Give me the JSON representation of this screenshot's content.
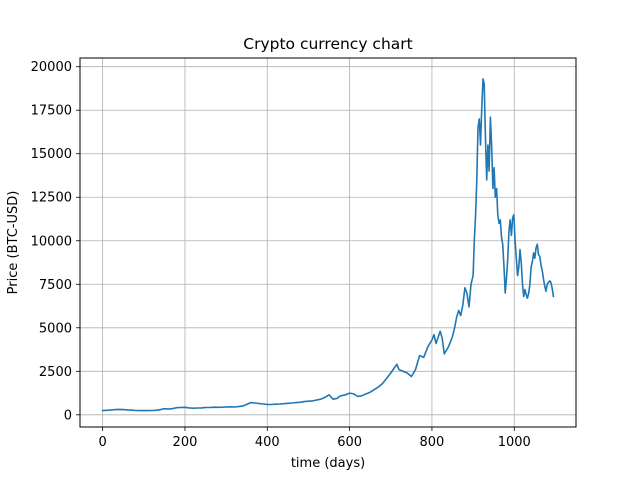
{
  "chart_data": {
    "type": "line",
    "title": "Crypto currency chart",
    "xlabel": "time (days)",
    "ylabel": "Price (BTC-USD)",
    "xlim": [
      -55,
      1150
    ],
    "ylim": [
      -700,
      20500
    ],
    "xticks": [
      0,
      200,
      400,
      600,
      800,
      1000
    ],
    "yticks": [
      0,
      2500,
      5000,
      7500,
      10000,
      12500,
      15000,
      17500,
      20000
    ],
    "grid": true,
    "line_color": "#1f77b4",
    "series": [
      {
        "x": [
          0,
          10,
          20,
          30,
          40,
          50,
          60,
          70,
          80,
          90,
          100,
          110,
          120,
          130,
          140,
          150,
          160,
          170,
          180,
          190,
          200,
          210,
          220,
          230,
          240,
          250,
          260,
          270,
          280,
          290,
          300,
          310,
          320,
          330,
          340,
          350,
          360,
          370,
          380,
          390,
          400,
          410,
          420,
          430,
          440,
          450,
          460,
          470,
          480,
          490,
          500,
          510,
          520,
          530,
          540,
          550,
          560,
          570,
          575,
          580,
          590,
          600,
          610,
          620,
          630,
          640,
          650,
          660,
          670,
          680,
          690,
          700,
          710,
          715,
          720,
          730,
          740,
          750,
          760,
          765,
          770,
          780,
          790,
          800,
          805,
          810,
          820,
          825,
          830,
          840,
          845,
          850,
          855,
          860,
          865,
          870,
          875,
          880,
          885,
          890,
          895,
          900,
          903,
          906,
          909,
          912,
          915,
          918,
          921,
          924,
          927,
          930,
          933,
          936,
          939,
          942,
          945,
          948,
          951,
          954,
          957,
          960,
          963,
          966,
          969,
          972,
          975,
          978,
          981,
          984,
          987,
          990,
          993,
          996,
          999,
          1002,
          1005,
          1008,
          1011,
          1014,
          1017,
          1020,
          1023,
          1026,
          1029,
          1032,
          1035,
          1038,
          1041,
          1044,
          1047,
          1050,
          1053,
          1056,
          1059,
          1062,
          1065,
          1068,
          1071,
          1074,
          1077,
          1080,
          1083,
          1086,
          1089,
          1092,
          1095
        ],
        "y": [
          250,
          260,
          270,
          300,
          310,
          300,
          280,
          270,
          250,
          240,
          240,
          245,
          250,
          260,
          300,
          350,
          330,
          360,
          410,
          420,
          430,
          400,
          380,
          390,
          400,
          420,
          420,
          440,
          430,
          440,
          450,
          460,
          450,
          470,
          500,
          600,
          700,
          680,
          650,
          620,
          600,
          590,
          610,
          620,
          640,
          660,
          680,
          700,
          720,
          760,
          780,
          800,
          850,
          900,
          1000,
          1150,
          900,
          950,
          1050,
          1100,
          1150,
          1250,
          1200,
          1050,
          1100,
          1200,
          1300,
          1450,
          1600,
          1800,
          2100,
          2400,
          2750,
          2900,
          2600,
          2500,
          2400,
          2200,
          2600,
          3000,
          3400,
          3300,
          3900,
          4300,
          4600,
          4100,
          4800,
          4400,
          3500,
          3900,
          4200,
          4500,
          5000,
          5600,
          6000,
          5700,
          6300,
          7300,
          7000,
          6200,
          7500,
          8000,
          10000,
          11500,
          13500,
          16500,
          17000,
          15500,
          17500,
          19300,
          19000,
          16000,
          13500,
          15500,
          14000,
          17100,
          15500,
          13000,
          14200,
          12500,
          13000,
          11500,
          11000,
          11200,
          10200,
          9800,
          8500,
          7000,
          7800,
          8900,
          10500,
          11200,
          10300,
          11300,
          11500,
          10000,
          9000,
          8000,
          8500,
          9500,
          8700,
          7500,
          6800,
          7200,
          6900,
          6700,
          7000,
          7500,
          8500,
          8800,
          9300,
          9000,
          9600,
          9800,
          9200,
          9100,
          8600,
          8300,
          7800,
          7400,
          7100,
          7500,
          7600,
          7700,
          7600,
          7300,
          6800
        ]
      }
    ]
  }
}
